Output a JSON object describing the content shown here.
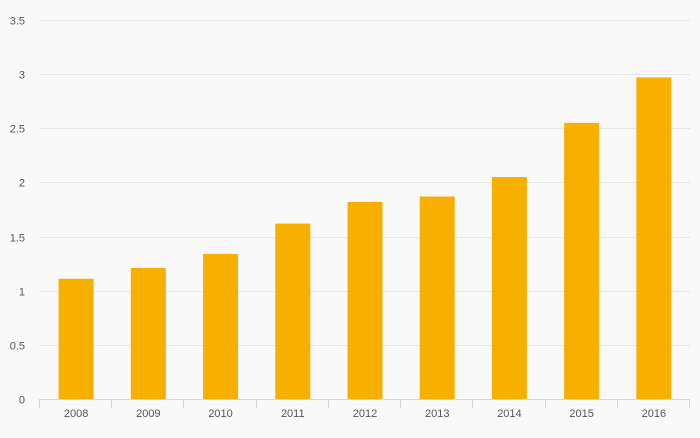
{
  "chart_data": {
    "type": "bar",
    "categories": [
      "2008",
      "2009",
      "2010",
      "2011",
      "2012",
      "2013",
      "2014",
      "2015",
      "2016"
    ],
    "values": [
      1.11,
      1.21,
      1.34,
      1.62,
      1.82,
      1.87,
      2.05,
      2.55,
      2.97
    ],
    "title": "",
    "xlabel": "",
    "ylabel": "",
    "ylim": [
      0,
      3.5
    ],
    "yticks": [
      "0",
      "0.5",
      "1",
      "1.5",
      "2",
      "2.5",
      "3",
      "3.5"
    ],
    "grid": true,
    "legend": "none",
    "colors": {
      "bar": "#f7b000",
      "grid": "#e6e6e6",
      "axis": "#ccd6eb",
      "background": "#f9f9f9"
    }
  }
}
